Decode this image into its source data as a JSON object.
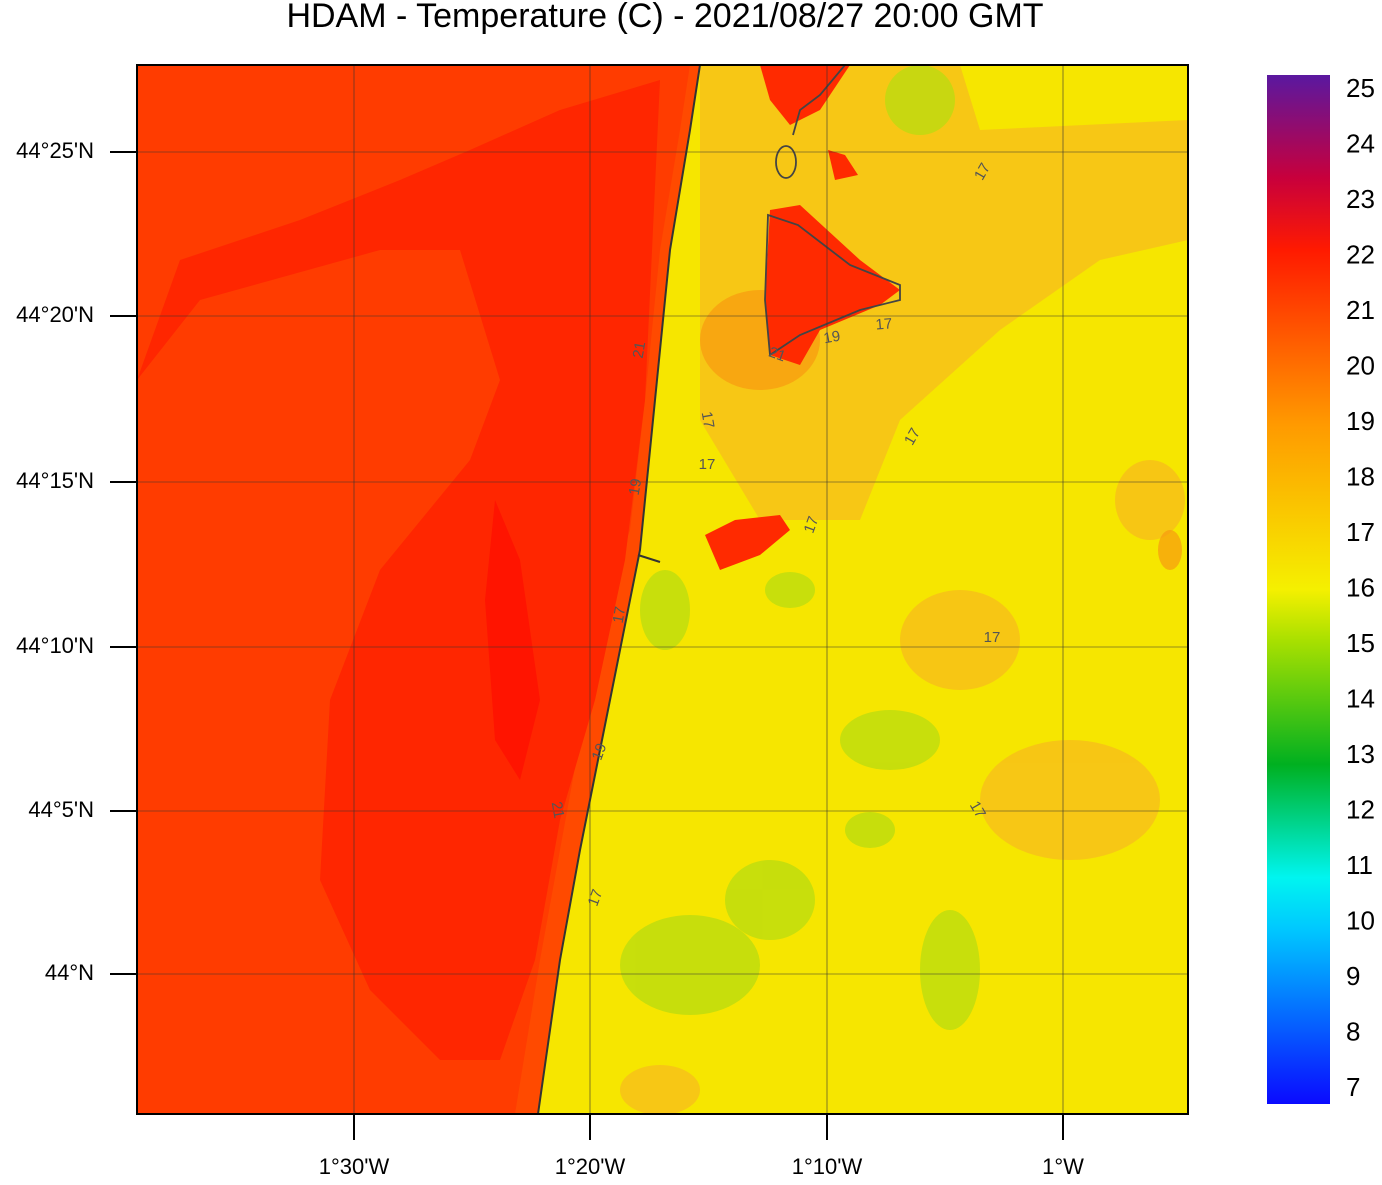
{
  "title": "HDAM - Temperature (C)  -  2021/08/27  20:00 GMT",
  "map": {
    "lat_labels": [
      "44°25'N",
      "44°20'N",
      "44°15'N",
      "44°10'N",
      "44°5'N",
      "44°N"
    ],
    "lon_labels": [
      "1°30'W",
      "1°20'W",
      "1°10'W",
      "1°W"
    ],
    "contour_labels": [
      17,
      21,
      19,
      17,
      21,
      17,
      17,
      17,
      19,
      17,
      17,
      17,
      19,
      21,
      17,
      17
    ]
  },
  "colorbar": {
    "ticks": [
      25,
      24,
      23,
      22,
      21,
      20,
      19,
      18,
      17,
      16,
      15,
      14,
      13,
      12,
      11,
      10,
      9,
      8,
      7
    ]
  }
}
